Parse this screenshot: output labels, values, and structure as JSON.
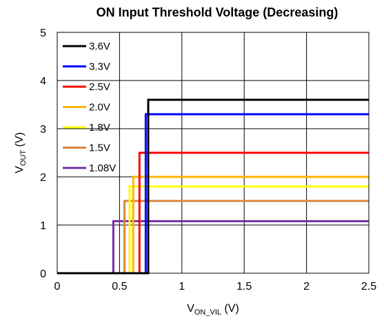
{
  "chart_data": {
    "type": "line",
    "title": "ON Input Threshold Voltage (Decreasing)",
    "xlabel": {
      "main": "V",
      "sub": "ON_VIL",
      "unit": " (V)"
    },
    "ylabel": {
      "main": "V",
      "sub": "OUT",
      "unit": " (V)"
    },
    "xlim": [
      0,
      2.5
    ],
    "ylim": [
      0,
      5
    ],
    "xticks": [
      0,
      0.5,
      1,
      1.5,
      2,
      2.5
    ],
    "xtick_labels": [
      "0",
      "0.5",
      "1",
      "1.5",
      "2",
      "2.5"
    ],
    "yticks": [
      0,
      1,
      2,
      3,
      4,
      5
    ],
    "ytick_labels": [
      "0",
      "1",
      "2",
      "3",
      "4",
      "5"
    ],
    "grid": true,
    "legend_position": "top-left",
    "series": [
      {
        "name": "3.6V",
        "color": "#000000",
        "x": [
          0,
          0.73,
          0.73,
          2.5
        ],
        "y": [
          0,
          0,
          3.6,
          3.6
        ]
      },
      {
        "name": "3.3V",
        "color": "#0000ff",
        "x": [
          0,
          0.71,
          0.71,
          2.5
        ],
        "y": [
          0,
          0,
          3.3,
          3.3
        ]
      },
      {
        "name": "2.5V",
        "color": "#ff0000",
        "x": [
          0,
          0.66,
          0.66,
          2.5
        ],
        "y": [
          0,
          0,
          2.5,
          2.5
        ]
      },
      {
        "name": "2.0V",
        "color": "#ffb400",
        "x": [
          0,
          0.61,
          0.61,
          2.5
        ],
        "y": [
          0,
          0,
          2.0,
          2.0
        ]
      },
      {
        "name": "1.8V",
        "color": "#ffff00",
        "x": [
          0,
          0.58,
          0.58,
          2.5
        ],
        "y": [
          0,
          0,
          1.8,
          1.8
        ]
      },
      {
        "name": "1.5V",
        "color": "#d9843b",
        "x": [
          0,
          0.54,
          0.54,
          2.5
        ],
        "y": [
          0,
          0,
          1.5,
          1.5
        ]
      },
      {
        "name": "1.08V",
        "color": "#7030a0",
        "x": [
          0,
          0.45,
          0.45,
          2.5
        ],
        "y": [
          0,
          0,
          1.08,
          1.08
        ]
      }
    ]
  }
}
